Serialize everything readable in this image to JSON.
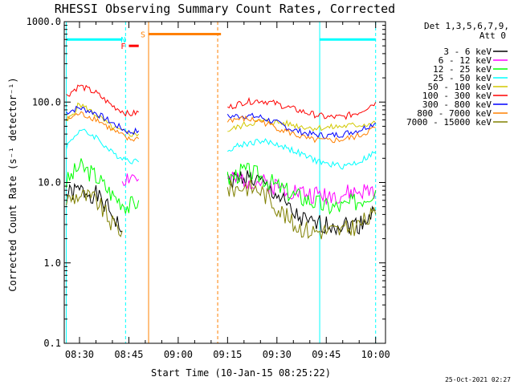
{
  "chart_data": {
    "type": "line",
    "title": "RHESSI Observing Summary Count Rates, Corrected",
    "ylabel": "Corrected Count Rate (s⁻¹ detector⁻¹)",
    "xlabel": "Start Time (10-Jan-15 08:25:22)",
    "y_scale": "log",
    "ylim": [
      0.1,
      1000
    ],
    "xlim": [
      "08:25:22",
      "10:03:00"
    ],
    "y_ticks": [
      "0.1",
      "1.0",
      "10.0",
      "100.0",
      "1000.0"
    ],
    "x_ticks": [
      "08:30",
      "08:45",
      "09:00",
      "09:15",
      "09:30",
      "09:45",
      "10:00"
    ],
    "grid": false,
    "legend_position": "right",
    "legend_header": [
      "Det 1,3,5,6,7,9,",
      "Att 0"
    ],
    "timestamp": "25-Oct-2021 02:27",
    "series": [
      {
        "name": "3 - 6 keV",
        "color": "#000000",
        "x": [
          "08:26",
          "08:30",
          "08:35",
          "08:40",
          "08:43",
          "09:15",
          "09:20",
          "09:25",
          "09:30",
          "09:35",
          "09:40",
          "09:45",
          "09:50",
          "09:55",
          "10:00"
        ],
        "values": [
          7,
          8,
          7,
          4,
          2.5,
          10,
          12,
          10,
          7,
          4,
          3,
          3,
          3,
          3,
          4.5
        ]
      },
      {
        "name": "6 - 12 keV",
        "color": "#ff00ff",
        "x": [
          "08:43",
          "08:46",
          "08:48",
          "09:15",
          "09:20",
          "09:25",
          "09:30",
          "09:35",
          "09:40",
          "09:45",
          "09:50",
          "09:55",
          "10:00"
        ],
        "values": [
          11,
          12,
          11,
          10,
          11,
          10,
          9,
          8,
          7,
          7,
          7,
          7.5,
          8
        ]
      },
      {
        "name": "12 - 25 keV",
        "color": "#00ff00",
        "x": [
          "08:26",
          "08:30",
          "08:35",
          "08:40",
          "08:45",
          "08:48",
          "09:15",
          "09:20",
          "09:25",
          "09:30",
          "09:35",
          "09:40",
          "09:45",
          "09:50",
          "09:55",
          "10:00"
        ],
        "values": [
          10,
          16,
          12,
          7,
          5,
          6,
          11,
          14,
          12,
          9,
          7,
          6,
          5,
          5,
          6,
          8
        ]
      },
      {
        "name": "25 - 50 keV",
        "color": "#00ffff",
        "x": [
          "08:26",
          "08:30",
          "08:35",
          "08:40",
          "08:45",
          "08:48",
          "09:15",
          "09:20",
          "09:25",
          "09:30",
          "09:35",
          "09:40",
          "09:45",
          "09:50",
          "09:55",
          "10:00"
        ],
        "values": [
          28,
          45,
          37,
          23,
          19,
          18,
          26,
          30,
          33,
          30,
          25,
          20,
          17,
          16,
          18,
          24
        ]
      },
      {
        "name": "50 - 100 keV",
        "color": "#d2c800",
        "x": [
          "08:26",
          "08:30",
          "08:35",
          "08:40",
          "08:45",
          "08:48",
          "09:15",
          "09:20",
          "09:25",
          "09:30",
          "09:35",
          "09:40",
          "09:45",
          "09:50",
          "09:55",
          "10:00"
        ],
        "values": [
          55,
          95,
          70,
          48,
          40,
          40,
          44,
          52,
          58,
          56,
          52,
          48,
          48,
          50,
          52,
          55
        ]
      },
      {
        "name": "100 - 300 keV",
        "color": "#ff0000",
        "x": [
          "08:26",
          "08:30",
          "08:35",
          "08:40",
          "08:45",
          "08:48",
          "09:15",
          "09:20",
          "09:25",
          "09:30",
          "09:35",
          "09:40",
          "09:45",
          "09:50",
          "09:55",
          "10:00"
        ],
        "values": [
          120,
          160,
          130,
          90,
          70,
          75,
          85,
          100,
          105,
          95,
          82,
          72,
          65,
          65,
          75,
          100
        ]
      },
      {
        "name": "300 - 800 keV",
        "color": "#0000ff",
        "x": [
          "08:26",
          "08:30",
          "08:35",
          "08:40",
          "08:45",
          "08:48",
          "09:15",
          "09:20",
          "09:25",
          "09:30",
          "09:35",
          "09:40",
          "09:45",
          "09:50",
          "09:55",
          "10:00"
        ],
        "values": [
          75,
          85,
          73,
          55,
          42,
          44,
          66,
          68,
          65,
          55,
          45,
          40,
          38,
          40,
          45,
          55
        ]
      },
      {
        "name": "800 - 7000 keV",
        "color": "#ff8000",
        "x": [
          "08:26",
          "08:30",
          "08:35",
          "08:40",
          "08:45",
          "08:48",
          "09:15",
          "09:20",
          "09:25",
          "09:30",
          "09:35",
          "09:40",
          "09:45",
          "09:50",
          "09:55",
          "10:00"
        ],
        "values": [
          60,
          72,
          62,
          45,
          34,
          35,
          60,
          62,
          58,
          48,
          40,
          34,
          33,
          34,
          38,
          48
        ]
      },
      {
        "name": "7000 - 15000 keV",
        "color": "#808000",
        "x": [
          "08:26",
          "08:30",
          "08:35",
          "08:40",
          "08:43",
          "09:15",
          "09:20",
          "09:25",
          "09:30",
          "09:35",
          "09:40",
          "09:45",
          "09:50",
          "09:55",
          "10:00"
        ],
        "values": [
          6,
          7,
          6,
          3,
          2.5,
          8,
          9,
          8,
          5,
          3,
          2.5,
          2.5,
          2.5,
          3,
          4
        ]
      }
    ],
    "annotations": [
      {
        "label": "F",
        "color": "#ff0000",
        "x": [
          "08:45",
          "08:48"
        ],
        "y": 500
      },
      {
        "label": "N",
        "color": "#00ffff",
        "x": [
          "08:45",
          "08:45"
        ],
        "y": 600
      },
      {
        "label": "S",
        "color": "#ff8000",
        "x": [
          "08:51",
          "09:13"
        ],
        "y": 700
      }
    ],
    "orbit_bars": [
      {
        "color": "#00ffff",
        "x": [
          "08:26",
          "08:43"
        ],
        "y": 600
      },
      {
        "color": "#00ffff",
        "x": [
          "09:43",
          "10:00"
        ],
        "y": 600
      }
    ],
    "vertical_lines": [
      {
        "x": "08:26",
        "color": "#00ffff",
        "dashed": false
      },
      {
        "x": "08:44",
        "color": "#00ffff",
        "dashed": true
      },
      {
        "x": "08:51",
        "color": "#ff8000",
        "dashed": false
      },
      {
        "x": "09:12",
        "color": "#ff8000",
        "dashed": true
      },
      {
        "x": "09:43",
        "color": "#00ffff",
        "dashed": false
      },
      {
        "x": "10:00",
        "color": "#00ffff",
        "dashed": true
      }
    ]
  }
}
